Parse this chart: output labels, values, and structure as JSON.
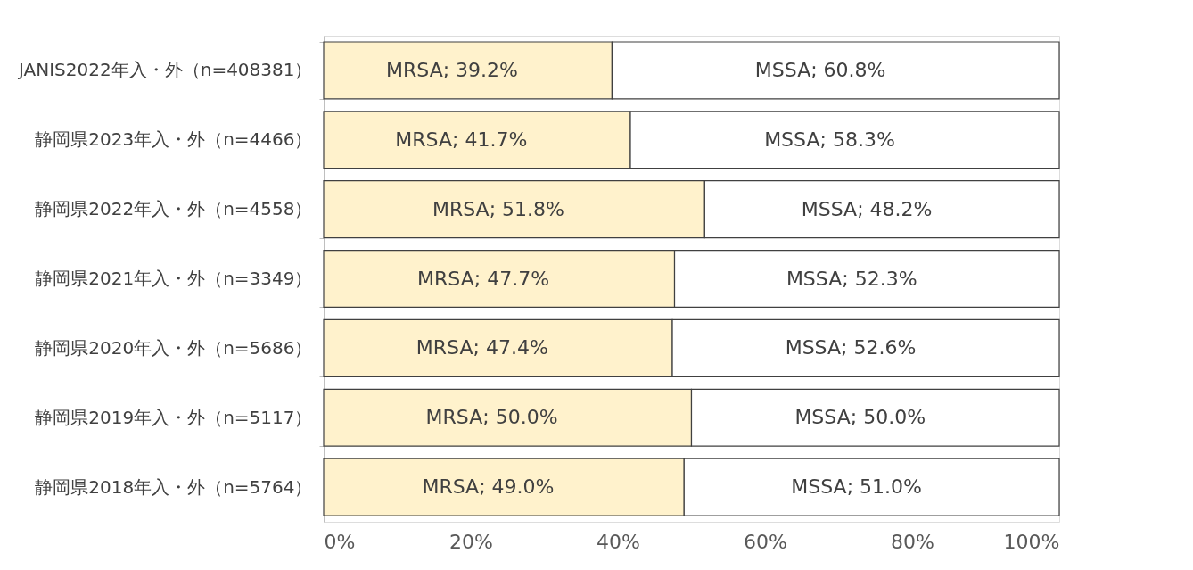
{
  "chart_data": {
    "type": "bar",
    "orientation": "horizontal",
    "stacked": true,
    "categories": [
      "JANIS2022年入・外（n=408381）",
      "静岡県2023年入・外（n=4466）",
      "静岡県2022年入・外（n=4558）",
      "静岡県2021年入・外（n=3349）",
      "静岡県2020年入・外（n=5686）",
      "静岡県2019年入・外（n=5117）",
      "静岡県2018年入・外（n=5764）"
    ],
    "series": [
      {
        "name": "MRSA",
        "color": "#fff2cc",
        "values": [
          39.2,
          41.7,
          51.8,
          47.7,
          47.4,
          50.0,
          49.0
        ],
        "value_labels": [
          "; 39.2%",
          "; 41.7%",
          "; 51.8%",
          "; 47.7%",
          "; 47.4%",
          "; 50.0%",
          "; 49.0%"
        ]
      },
      {
        "name": "MSSA",
        "color": "#ffffff",
        "values": [
          60.8,
          58.3,
          48.2,
          52.3,
          52.6,
          50.0,
          51.0
        ],
        "value_labels": [
          "; 60.8%",
          "; 58.3%",
          "; 48.2%",
          "; 52.3%",
          "; 52.6%",
          "; 50.0%",
          "; 51.0%"
        ]
      }
    ],
    "xlim": [
      0,
      100
    ],
    "xticks": [
      {
        "value": 0,
        "label": "0%"
      },
      {
        "value": 20,
        "label": "20%"
      },
      {
        "value": 40,
        "label": "40%"
      },
      {
        "value": 60,
        "label": "60%"
      },
      {
        "value": 80,
        "label": "80%"
      },
      {
        "value": 100,
        "label": "100%"
      }
    ],
    "grid": false,
    "legend": false
  }
}
